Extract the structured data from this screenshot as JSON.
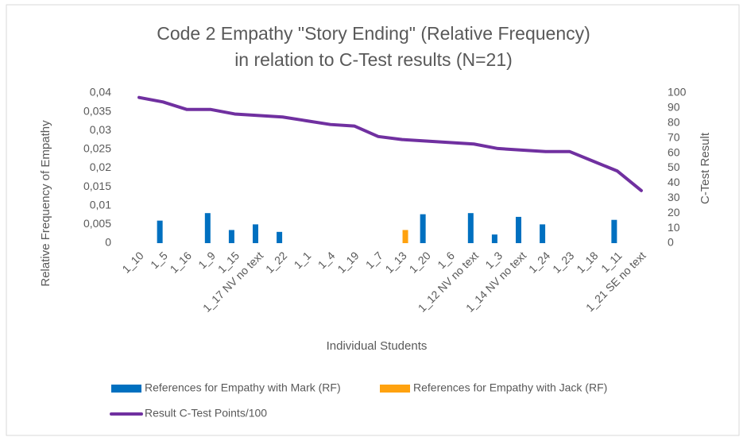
{
  "chart_data": {
    "type": "bar",
    "title": [
      "Code 2 Empathy \"Story Ending\" (Relative Frequency)",
      "in relation to C-Test results (N=21)"
    ],
    "x_label": "Individual Students",
    "y_label": "Relative Frequency of Empathy",
    "y2_label": "C-Test Result",
    "categories": [
      "1_10",
      "1_5",
      "1_16",
      "1_9",
      "1_15",
      "1_17 NV no text",
      "1_22",
      "1_1",
      "1_4",
      "1_19",
      "1_7",
      "1_13",
      "1_20",
      "1_6",
      "1_12 NV no text",
      "1_3",
      "1_14 NV no text",
      "1_24",
      "1_23",
      "1_18",
      "1_11",
      "1_21 SE no text"
    ],
    "series": [
      {
        "name": "References for Empathy with Mark (RF)",
        "color": "#0070c0",
        "type": "bar",
        "values": [
          null,
          0.006,
          null,
          0.008,
          0.0035,
          0.005,
          0.003,
          null,
          null,
          null,
          null,
          null,
          0.0077,
          null,
          0.008,
          0.0023,
          0.007,
          0.005,
          null,
          null,
          0.0062,
          null
        ]
      },
      {
        "name": "References for Empathy with Jack (RF)",
        "color": "#ffa20f",
        "type": "bar",
        "values": [
          null,
          null,
          null,
          null,
          null,
          null,
          null,
          null,
          null,
          null,
          null,
          0.0035,
          null,
          null,
          null,
          null,
          null,
          null,
          null,
          null,
          null,
          null
        ]
      },
      {
        "name": "Result C-Test Points/100",
        "color": "#7030a0",
        "type": "line",
        "axis": "y2",
        "values": [
          97,
          94,
          89,
          89,
          86,
          85,
          84,
          81.5,
          79,
          78,
          71,
          69,
          68,
          67,
          66,
          63,
          62,
          61,
          61,
          54.5,
          48,
          35
        ]
      }
    ],
    "ylim": [
      0,
      0.04
    ],
    "yticks": [
      0,
      {
        "value": 0.005,
        "label": "0,005"
      },
      {
        "value": 0.01,
        "label": "0,01"
      },
      {
        "value": 0.015,
        "label": "0,015"
      },
      {
        "value": 0.02,
        "label": "0,02"
      },
      {
        "value": 0.025,
        "label": "0,025"
      },
      {
        "value": 0.03,
        "label": "0,03"
      },
      {
        "value": 0.035,
        "label": "0,035"
      },
      {
        "value": 0.04,
        "label": "0,04"
      }
    ],
    "y2lim": [
      0,
      100
    ],
    "y2ticks": [
      0,
      10,
      20,
      30,
      40,
      50,
      60,
      70,
      80,
      90,
      100
    ],
    "legend": "bottom"
  }
}
